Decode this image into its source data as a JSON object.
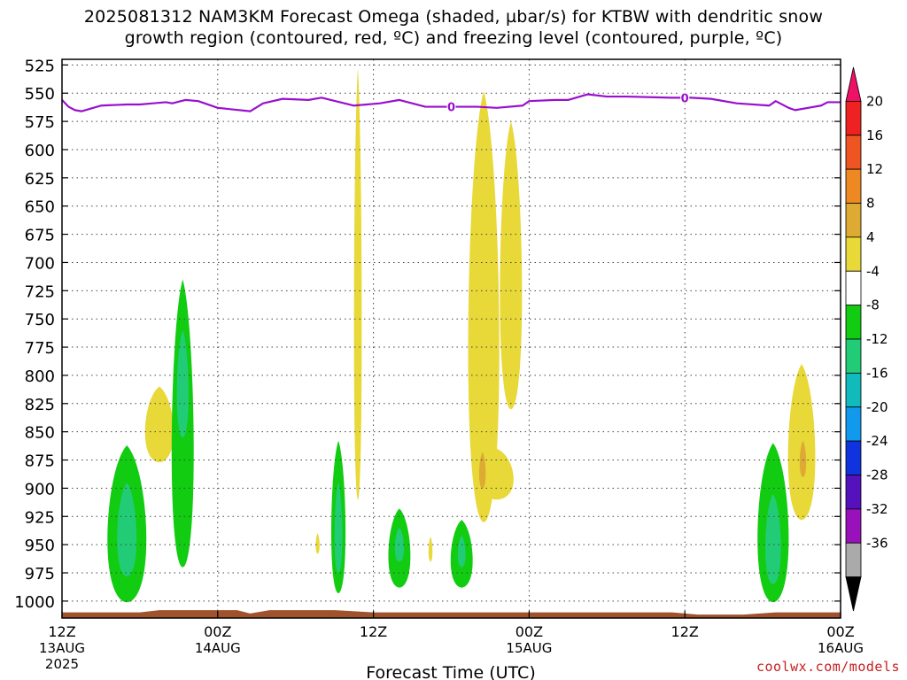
{
  "header": {
    "title_line1": "2025081312 NAM3KM Forecast Omega (shaded, µbar/s) for KTBW with dendritic snow",
    "title_line2": "growth region (contoured, red, ºC) and freezing level (contoured, purple, ºC)"
  },
  "footer": {
    "credit": "coolwx.com/models"
  },
  "chart_data": {
    "type": "heatmap",
    "xlabel": "Forecast Time (UTC)",
    "ylabel": "",
    "x_range_hours": [
      0,
      60
    ],
    "y_range_hpa": [
      1015,
      520
    ],
    "y_axis_inverted": true,
    "grid": true,
    "x_ticks": [
      {
        "hour": 0,
        "label": "12Z",
        "sub1": "13AUG",
        "sub2": "2025"
      },
      {
        "hour": 12,
        "label": "00Z",
        "sub1": "14AUG",
        "sub2": ""
      },
      {
        "hour": 24,
        "label": "12Z",
        "sub1": "",
        "sub2": ""
      },
      {
        "hour": 36,
        "label": "00Z",
        "sub1": "15AUG",
        "sub2": ""
      },
      {
        "hour": 48,
        "label": "12Z",
        "sub1": "",
        "sub2": ""
      },
      {
        "hour": 60,
        "label": "00Z",
        "sub1": "16AUG",
        "sub2": ""
      }
    ],
    "y_ticks": [
      525,
      550,
      575,
      600,
      625,
      650,
      675,
      700,
      725,
      750,
      775,
      800,
      825,
      850,
      875,
      900,
      925,
      950,
      975,
      1000
    ],
    "colorbar": {
      "placement": "right",
      "labels": [
        "20",
        "16",
        "12",
        "8",
        "4",
        "-4",
        "-8",
        "-12",
        "-16",
        "-20",
        "-24",
        "-28",
        "-32",
        "-36"
      ],
      "colors": [
        "#ee1166",
        "#ee2222",
        "#ee5522",
        "#ee8822",
        "#ddaa33",
        "#e8d838",
        "#ffffff",
        "#11cc11",
        "#22cc77",
        "#11bbbb",
        "#1199ee",
        "#1133dd",
        "#5511bb",
        "#9911bb",
        "#aaaaaa",
        "#000000"
      ]
    },
    "freezing_level": {
      "color": "#9911cc",
      "contour_label": "0",
      "label_hours": [
        30,
        48
      ],
      "hours": [
        0,
        0.5,
        1,
        1.5,
        3,
        5,
        6,
        7,
        8,
        8.5,
        9.5,
        10.5,
        12,
        14.5,
        15.5,
        17,
        19,
        20,
        22.5,
        24.5,
        26,
        28,
        29,
        32,
        33.5,
        35.5,
        36,
        38,
        39,
        40.5,
        42,
        43.5,
        47,
        48.5,
        50,
        52,
        54.5,
        55,
        56,
        56.5,
        57.5,
        58.5,
        59,
        60
      ],
      "pressure": [
        556,
        562,
        565,
        566,
        561,
        560,
        560,
        559,
        558,
        559,
        556,
        557,
        563,
        566,
        559,
        555,
        556,
        554,
        561,
        559,
        556,
        562,
        562,
        562,
        563,
        561,
        557,
        556,
        556,
        551,
        553,
        553,
        554,
        554,
        555,
        559,
        561,
        557,
        563,
        565,
        563,
        561,
        558,
        558
      ]
    },
    "surface_terrain": {
      "color": "#a0522d",
      "hours": [
        0,
        6,
        7.5,
        13.5,
        14.5,
        16,
        21,
        24,
        36,
        47,
        49,
        52.5,
        55,
        60
      ],
      "pressure": [
        1010,
        1010,
        1008,
        1008,
        1011,
        1008,
        1008,
        1010,
        1010,
        1010,
        1012,
        1012,
        1010,
        1010
      ]
    },
    "omega_regions": [
      {
        "name": "left-green-blob",
        "level": -8,
        "center_hour": 5.0,
        "top_hpa": 862,
        "bottom_hpa": 1001,
        "halfwidth_h": 1.5
      },
      {
        "name": "left-green-teal",
        "level": -12,
        "center_hour": 5.0,
        "top_hpa": 895,
        "bottom_hpa": 978,
        "halfwidth_h": 0.75
      },
      {
        "name": "left-yellow-small",
        "level": 4,
        "center_hour": 7.5,
        "top_hpa": 810,
        "bottom_hpa": 877,
        "halfwidth_h": 1.1
      },
      {
        "name": "plume-green",
        "level": -8,
        "center_hour": 9.3,
        "top_hpa": 715,
        "bottom_hpa": 970,
        "halfwidth_h": 0.85
      },
      {
        "name": "plume-teal",
        "level": -12,
        "center_hour": 9.3,
        "top_hpa": 760,
        "bottom_hpa": 855,
        "halfwidth_h": 0.45
      },
      {
        "name": "mid-green-1",
        "level": -8,
        "center_hour": 21.3,
        "top_hpa": 858,
        "bottom_hpa": 993,
        "halfwidth_h": 0.55
      },
      {
        "name": "mid-teal-1",
        "level": -12,
        "center_hour": 21.3,
        "top_hpa": 895,
        "bottom_hpa": 975,
        "halfwidth_h": 0.3
      },
      {
        "name": "thin-yellow-column",
        "level": 4,
        "center_hour": 22.8,
        "top_hpa": 528,
        "bottom_hpa": 910,
        "halfwidth_h": 0.3
      },
      {
        "name": "tiny-yellow-1",
        "level": 4,
        "center_hour": 19.7,
        "top_hpa": 940,
        "bottom_hpa": 958,
        "halfwidth_h": 0.15
      },
      {
        "name": "mid-green-2",
        "level": -8,
        "center_hour": 26.0,
        "top_hpa": 918,
        "bottom_hpa": 988,
        "halfwidth_h": 0.85
      },
      {
        "name": "mid-teal-2",
        "level": -12,
        "center_hour": 26.0,
        "top_hpa": 935,
        "bottom_hpa": 965,
        "halfwidth_h": 0.35
      },
      {
        "name": "tiny-yellow-2",
        "level": 4,
        "center_hour": 28.4,
        "top_hpa": 943,
        "bottom_hpa": 965,
        "halfwidth_h": 0.15
      },
      {
        "name": "mid-green-3",
        "level": -8,
        "center_hour": 30.8,
        "top_hpa": 928,
        "bottom_hpa": 988,
        "halfwidth_h": 0.85
      },
      {
        "name": "mid-teal-3",
        "level": -12,
        "center_hour": 30.8,
        "top_hpa": 942,
        "bottom_hpa": 970,
        "halfwidth_h": 0.3
      },
      {
        "name": "big-yellow-column",
        "level": 4,
        "center_hour": 32.5,
        "top_hpa": 548,
        "bottom_hpa": 930,
        "halfwidth_h": 1.2
      },
      {
        "name": "yellow-lower-lobe",
        "level": 4,
        "center_hour": 33.5,
        "top_hpa": 865,
        "bottom_hpa": 910,
        "halfwidth_h": 1.3
      },
      {
        "name": "orange-core-1",
        "level": 8,
        "center_hour": 32.4,
        "top_hpa": 868,
        "bottom_hpa": 900,
        "halfwidth_h": 0.25
      },
      {
        "name": "yellow-right-column",
        "level": 4,
        "center_hour": 34.6,
        "top_hpa": 575,
        "bottom_hpa": 830,
        "halfwidth_h": 0.85
      },
      {
        "name": "right-green-blob",
        "level": -8,
        "center_hour": 54.8,
        "top_hpa": 860,
        "bottom_hpa": 1001,
        "halfwidth_h": 1.2
      },
      {
        "name": "right-teal",
        "level": -12,
        "center_hour": 54.8,
        "top_hpa": 905,
        "bottom_hpa": 985,
        "halfwidth_h": 0.6
      },
      {
        "name": "right-yellow",
        "level": 4,
        "center_hour": 57.0,
        "top_hpa": 790,
        "bottom_hpa": 928,
        "halfwidth_h": 1.05
      },
      {
        "name": "orange-core-2",
        "level": 8,
        "center_hour": 57.1,
        "top_hpa": 858,
        "bottom_hpa": 890,
        "halfwidth_h": 0.25
      }
    ]
  }
}
